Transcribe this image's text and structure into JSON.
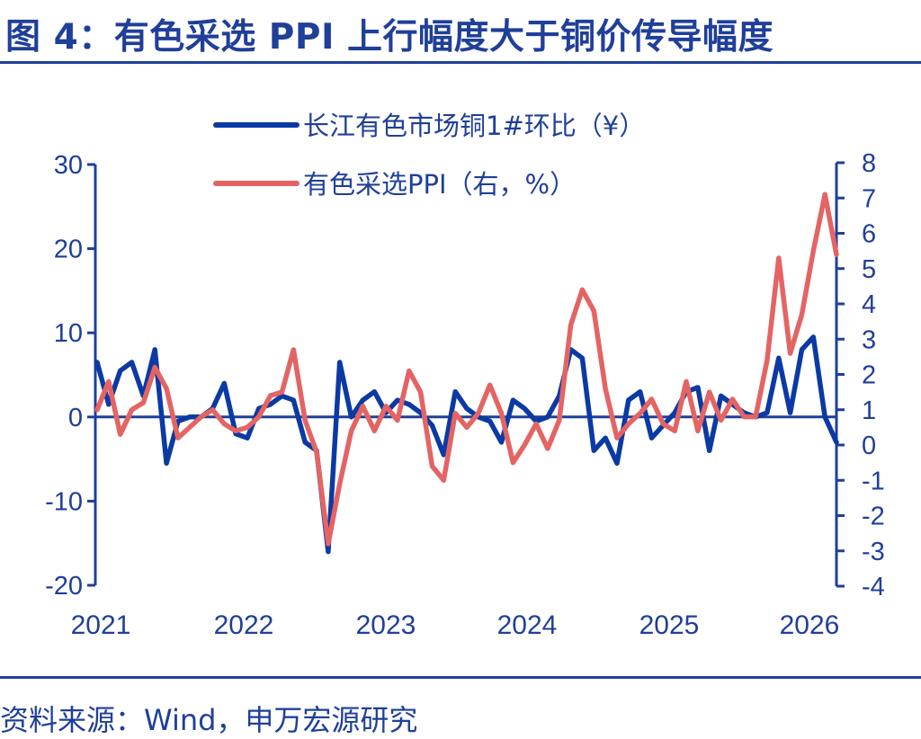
{
  "title": "图 4：有色采选 PPI 上行幅度大于铜价传导幅度",
  "source": "资料来源：Wind，申万宏源研究",
  "chart_data": {
    "type": "line",
    "x_tick_labels": [
      "2021",
      "2022",
      "2023",
      "2024",
      "2025",
      "2026"
    ],
    "left_axis": {
      "ylim": [
        -20,
        30
      ],
      "ticks": [
        -20,
        -10,
        0,
        10,
        20,
        30
      ]
    },
    "right_axis": {
      "ylim": [
        -4,
        8
      ],
      "ticks": [
        -4,
        -3,
        -2,
        -1,
        0,
        1,
        2,
        3,
        4,
        5,
        6,
        7,
        8
      ]
    },
    "colors": {
      "copper": "#0b3aa4",
      "ppi": "#e46464",
      "axis": "#1f3f99"
    },
    "series": [
      {
        "name": "长江有色市场铜1#环比（¥）",
        "axis": "left",
        "values": [
          6.5,
          1.5,
          5.5,
          6.5,
          2.5,
          8,
          -5.5,
          -0.5,
          0,
          0,
          1,
          4,
          -2,
          -2.5,
          1,
          1.5,
          2.5,
          2,
          -3,
          -4,
          -16,
          6.5,
          0,
          2,
          3,
          0.5,
          2,
          1.5,
          0.5,
          -1,
          -4.5,
          3,
          1,
          0,
          -0.5,
          -3,
          2,
          1,
          -0.5,
          0,
          2.5,
          8,
          7,
          -4,
          -2.5,
          -5.5,
          2,
          3,
          -2.5,
          -1,
          0.5,
          3,
          3.5,
          -4,
          2.5,
          1.5,
          0.5,
          0,
          0.5,
          7,
          0.5,
          8,
          9.5,
          0,
          -3
        ]
      },
      {
        "name": "有色采选PPI（右，%）",
        "axis": "right",
        "values": [
          1,
          1.8,
          0.3,
          1,
          1.2,
          2.2,
          1.6,
          0.2,
          0.5,
          0.8,
          1,
          0.6,
          0.4,
          0.5,
          0.8,
          1.4,
          1.5,
          2.7,
          0.7,
          -0.2,
          -2.8,
          -1.1,
          0.4,
          1.1,
          0.4,
          1.1,
          0.7,
          2.1,
          1.5,
          -0.6,
          -1,
          0.9,
          0.5,
          0.9,
          1.7,
          0.9,
          -0.5,
          0,
          0.6,
          -0.1,
          0.7,
          3.4,
          4.4,
          3.8,
          1.6,
          0.2,
          0.6,
          0.9,
          1.3,
          0.6,
          0.4,
          1.8,
          0.4,
          1.5,
          0.7,
          1.3,
          0.8,
          0.8,
          2.4,
          5.3,
          2.6,
          3.7,
          5.5,
          7.1,
          5.4
        ]
      }
    ],
    "grid": false,
    "legend_position": "top-center"
  }
}
